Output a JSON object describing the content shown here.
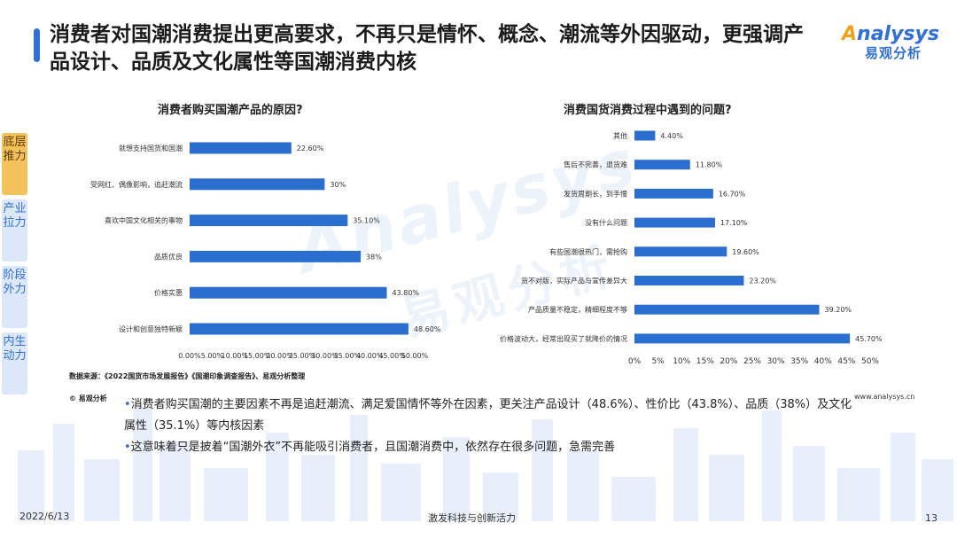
{
  "title": "消费者对国潮消费提出更高要求，不再只是情怀、概念、潮流等外因驱动，更强调产品设计、品质及文化属性等国潮消费内核",
  "logo": {
    "brand_en": "nalysys",
    "brand_o": "A",
    "brand_cn": "易观分析"
  },
  "watermark": {
    "en": "Analysys",
    "cn": "易观分析"
  },
  "side_tabs": [
    {
      "label": "底层推力",
      "active": true
    },
    {
      "label": "产业拉力",
      "active": false
    },
    {
      "label": "阶段外力",
      "active": false
    },
    {
      "label": "内生动力",
      "active": false
    }
  ],
  "chart_data": [
    {
      "type": "bar",
      "orientation": "horizontal",
      "title": "消费者购买国潮产品的原因?",
      "categories": [
        "就想支持国货和国潮",
        "受网红、偶像影响，追赶潮流",
        "喜欢中国文化相关的事物",
        "品质优良",
        "价格实惠",
        "设计和创意独特新颖"
      ],
      "values": [
        22.6,
        30,
        35.1,
        38,
        43.8,
        48.6
      ],
      "value_labels": [
        "22.60%",
        "30%",
        "35.10%",
        "38%",
        "43.80%",
        "48.60%"
      ],
      "xlim": [
        0,
        50
      ],
      "ticks": [
        "0.00%",
        "5.00%",
        "10.00%",
        "15.00%",
        "20.00%",
        "25.00%",
        "30.00%",
        "35.00%",
        "40.00%",
        "45.00%",
        "50.00%"
      ],
      "color": "#2a6fd0"
    },
    {
      "type": "bar",
      "orientation": "horizontal",
      "title": "消费国货消费过程中遇到的问题?",
      "categories": [
        "其他",
        "售后不完善，退货难",
        "发货周期长，到手慢",
        "没有什么问题",
        "有些国潮很热门，需抢购",
        "货不对版，实际产品与宣传差异大",
        "产品质量不稳定，精细程度不够",
        "价格波动大，经常出现买了就降价的情况"
      ],
      "values": [
        4.4,
        11.8,
        16.7,
        17.1,
        19.6,
        23.2,
        39.2,
        45.7
      ],
      "value_labels": [
        "4.40%",
        "11.80%",
        "16.70%",
        "17.10%",
        "19.60%",
        "23.20%",
        "39.20%",
        "45.70%"
      ],
      "xlim": [
        0,
        50
      ],
      "ticks": [
        "0%",
        "5%",
        "10%",
        "15%",
        "20%",
        "25%",
        "30%",
        "35%",
        "40%",
        "45%",
        "50%"
      ],
      "color": "#2a6fd0"
    }
  ],
  "source": "数据来源：《2022国货市场发展报告》《国潮印象调查报告》、易观分析整理",
  "copyright": "© 易观分析",
  "website": "www.analysys.cn",
  "summary": [
    {
      "bullet": "•",
      "text": "消费者购买国潮的主要因素不再是追赶潮流、满足爱国情怀等外在因素，更关注产品设计（48.6%）、性价比（43.8%）、品质（38%）及文化属性（35.1%）等内核因素"
    },
    {
      "bullet": "•",
      "text": "这意味着只是披着“国潮外衣”不再能吸引消费者，且国潮消费中，依然存在很多问题，急需完善"
    }
  ],
  "footer": {
    "date": "2022/6/13",
    "slogan": "激发科技与创新活力",
    "page": "13"
  }
}
